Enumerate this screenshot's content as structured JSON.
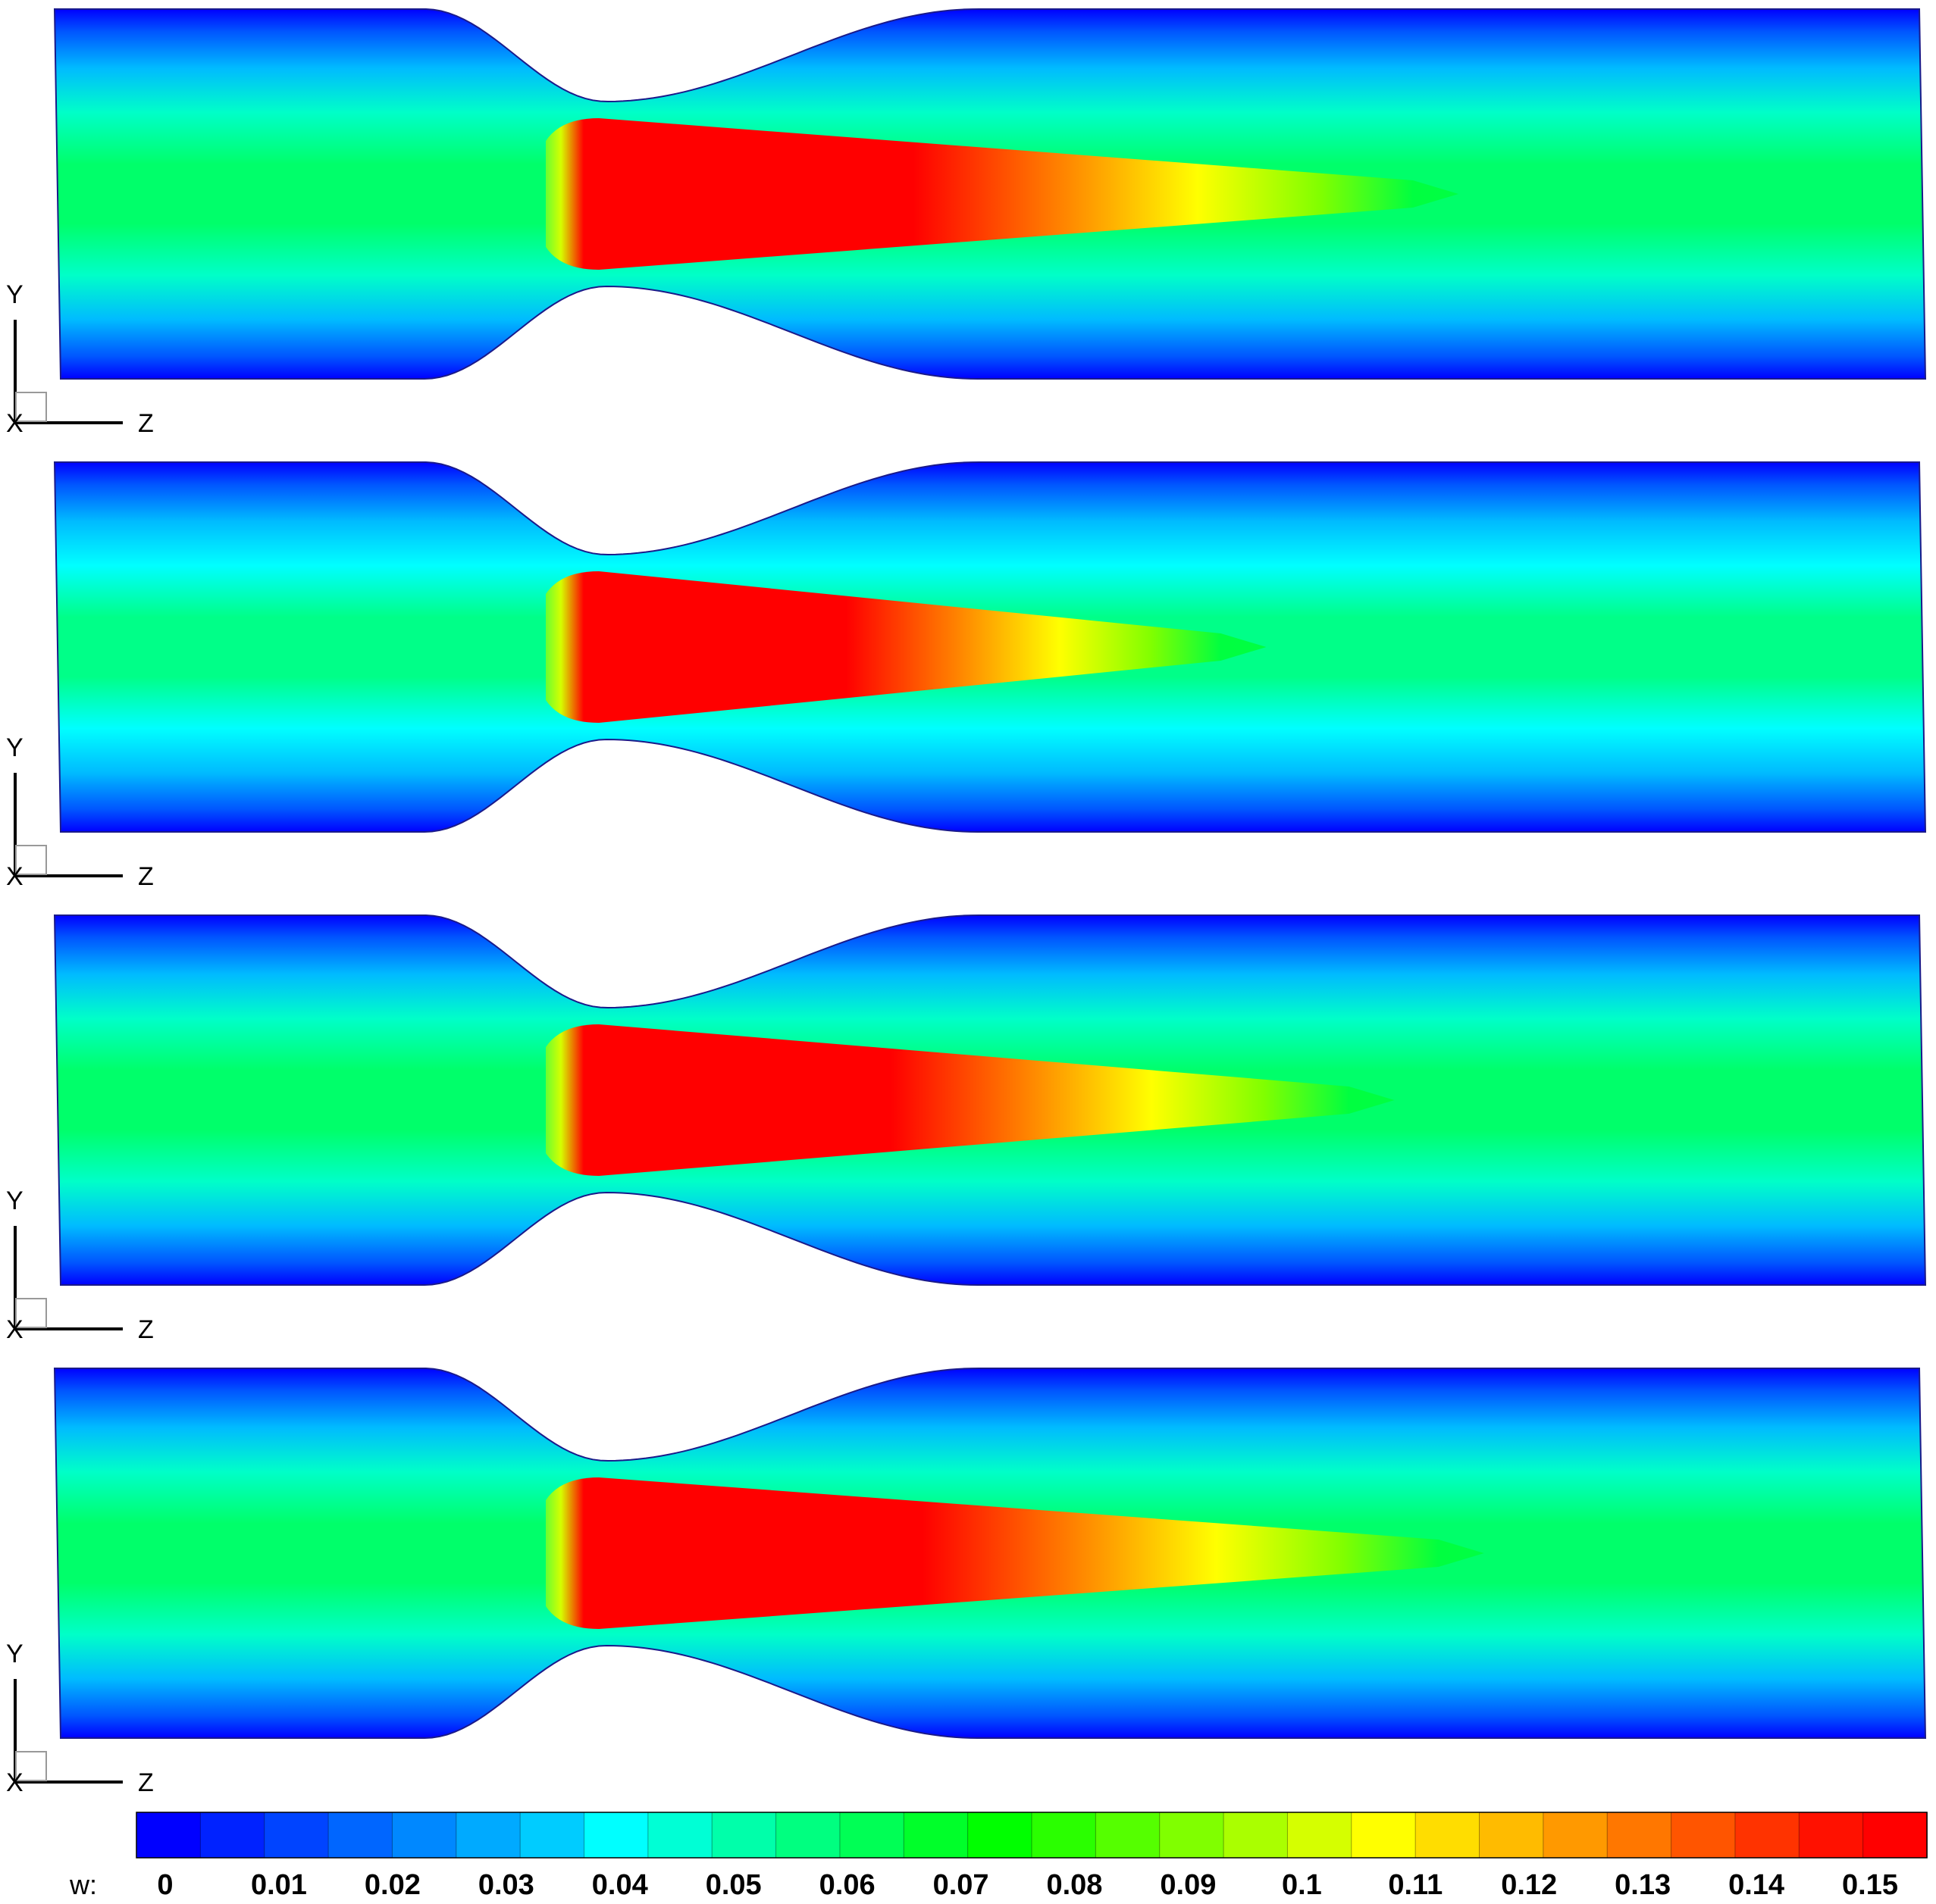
{
  "panels": [
    {
      "id": "panel-1",
      "jet_extent": 0.6,
      "recirculation": false
    },
    {
      "id": "panel-2",
      "jet_extent": 0.45,
      "recirculation": true
    },
    {
      "id": "panel-3",
      "jet_extent": 0.55,
      "recirculation": false
    },
    {
      "id": "panel-4",
      "jet_extent": 0.62,
      "recirculation": false
    }
  ],
  "axes_triad": {
    "vertical_label": "Y",
    "horizontal_label": "Z",
    "origin_label": "X"
  },
  "colorbar": {
    "variable_label": "w:",
    "tick_labels": [
      "0",
      "0.01",
      "0.02",
      "0.03",
      "0.04",
      "0.05",
      "0.06",
      "0.07",
      "0.08",
      "0.09",
      "0.1",
      "0.11",
      "0.12",
      "0.13",
      "0.14",
      "0.15"
    ],
    "colors": [
      "#0000ff",
      "#0022ff",
      "#0044ff",
      "#0066ff",
      "#0088ff",
      "#00aaff",
      "#00ccff",
      "#00ffff",
      "#00ffd5",
      "#00ffaa",
      "#00ff80",
      "#00ff55",
      "#00ff2a",
      "#00ff00",
      "#2aff00",
      "#55ff00",
      "#80ff00",
      "#aaff00",
      "#d5ff00",
      "#ffff00",
      "#ffdd00",
      "#ffbb00",
      "#ff9900",
      "#ff7700",
      "#ff5500",
      "#ff3300",
      "#ff1100",
      "#ff0000"
    ],
    "range": [
      0,
      0.155
    ]
  }
}
